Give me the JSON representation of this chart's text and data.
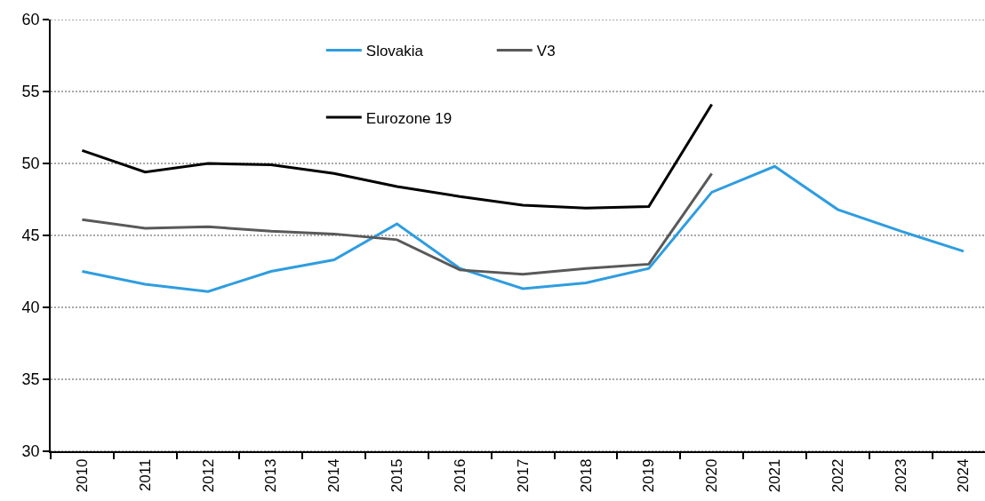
{
  "chart_data": {
    "type": "line",
    "categories": [
      "2010",
      "2011",
      "2012",
      "2013",
      "2014",
      "2015",
      "2016",
      "2017",
      "2018",
      "2019",
      "2020",
      "2021",
      "2022",
      "2023",
      "2024"
    ],
    "series": [
      {
        "name": "Slovakia",
        "color": "#2e9de0",
        "values": [
          42.5,
          41.6,
          41.1,
          42.5,
          43.3,
          45.8,
          42.7,
          41.3,
          41.7,
          42.7,
          48.0,
          49.8,
          46.8,
          45.3,
          43.9
        ]
      },
      {
        "name": "V3",
        "color": "#595959",
        "values": [
          46.1,
          45.5,
          45.6,
          45.3,
          45.1,
          44.7,
          42.6,
          42.3,
          42.7,
          43.0,
          49.3,
          null,
          null,
          null,
          null
        ]
      },
      {
        "name": "Eurozone 19",
        "color": "#000000",
        "values": [
          50.9,
          49.4,
          50.0,
          49.9,
          49.3,
          48.4,
          47.7,
          47.1,
          46.9,
          47.0,
          54.1,
          null,
          null,
          null,
          null
        ]
      }
    ],
    "ylim": [
      30,
      60
    ],
    "yticks": [
      30,
      35,
      40,
      45,
      50,
      55,
      60
    ],
    "grid": "y",
    "legend": "top",
    "line_style": "solid"
  }
}
